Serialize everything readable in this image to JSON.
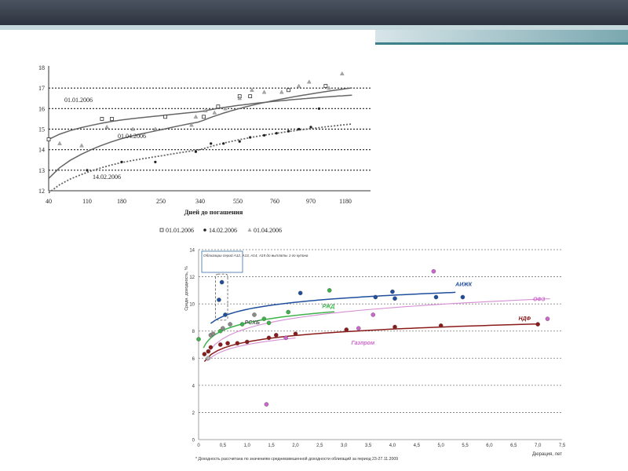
{
  "slide": {
    "colors": {
      "top_bar": "#3a414c",
      "stripe": "#c5d8dc",
      "accent": "#3e7f8c"
    }
  },
  "chart_data": [
    {
      "type": "scatter",
      "title": "",
      "xlabel": "Дней до погашения",
      "ylabel": "",
      "x_ticks": [
        "40",
        "110",
        "180",
        "250",
        "340",
        "550",
        "760",
        "970",
        "1180"
      ],
      "ylim": [
        12,
        18
      ],
      "y_ticks": [
        "12",
        "13",
        "14",
        "15",
        "16",
        "17",
        "18"
      ],
      "legend": [
        "01.01.2006",
        "14.02.2006",
        "01.04.2006"
      ],
      "legend_position": "bottom",
      "annotations": [
        "01.01.2006",
        "01.04.2006",
        "14.02.2006"
      ],
      "series": [
        {
          "name": "01.01.2006",
          "marker": "square",
          "points": [
            [
              40,
              14.5
            ],
            [
              140,
              15.5
            ],
            [
              160,
              15.5
            ],
            [
              260,
              15.6
            ],
            [
              360,
              15.6
            ],
            [
              440,
              16.1
            ],
            [
              560,
              16.6
            ],
            [
              620,
              16.6
            ],
            [
              840,
              16.9
            ],
            [
              1060,
              17.1
            ]
          ]
        },
        {
          "name": "14.02.2006",
          "marker": "dot",
          "points": [
            [
              110,
              13.0
            ],
            [
              180,
              13.4
            ],
            [
              240,
              13.4
            ],
            [
              330,
              13.9
            ],
            [
              400,
              14.3
            ],
            [
              470,
              14.3
            ],
            [
              560,
              14.4
            ],
            [
              620,
              14.6
            ],
            [
              700,
              14.7
            ],
            [
              770,
              14.8
            ],
            [
              840,
              14.9
            ],
            [
              900,
              15.0
            ],
            [
              970,
              15.1
            ],
            [
              1020,
              16.0
            ]
          ]
        },
        {
          "name": "01.04.2006",
          "marker": "triangle",
          "points": [
            [
              60,
              14.3
            ],
            [
              100,
              14.2
            ],
            [
              150,
              15.1
            ],
            [
              200,
              15.0
            ],
            [
              240,
              15.0
            ],
            [
              320,
              15.2
            ],
            [
              330,
              15.6
            ],
            [
              370,
              15.9
            ],
            [
              420,
              15.8
            ],
            [
              480,
              16.0
            ],
            [
              560,
              16.5
            ],
            [
              630,
              16.9
            ],
            [
              700,
              16.8
            ],
            [
              800,
              16.8
            ],
            [
              900,
              17.1
            ],
            [
              960,
              17.3
            ],
            [
              1080,
              17.0
            ],
            [
              1160,
              17.7
            ]
          ]
        }
      ]
    },
    {
      "type": "scatter",
      "title": "",
      "xlabel": "Дюрация, лет",
      "ylabel": "Средн. доходность, %",
      "xlim": [
        0,
        7.5
      ],
      "ylim": [
        0,
        14
      ],
      "x_ticks": [
        "0",
        "0,5",
        "1,0",
        "1,5",
        "2,0",
        "2,5",
        "3,0",
        "3,5",
        "4,0",
        "4,5",
        "5,0",
        "5,5",
        "6,0",
        "6,5",
        "7,0",
        "7,5"
      ],
      "y_ticks": [
        "0",
        "2",
        "4",
        "6",
        "8",
        "10",
        "12",
        "14"
      ],
      "annotation_box": "Облигации серий А12, А13, А14, А15 до выплаты 1-го купона",
      "footnote": "* Доходность рассчитана по значениям средневзвешенной доходности облигаций за период 23-27.11.2009",
      "series": [
        {
          "name": "АИЖК",
          "color": "#1f4e9c",
          "points": [
            [
              0.42,
              10.3
            ],
            [
              0.48,
              11.6
            ],
            [
              0.55,
              9.2
            ],
            [
              2.1,
              10.8
            ],
            [
              3.65,
              10.5
            ],
            [
              4.0,
              10.9
            ],
            [
              4.05,
              10.4
            ],
            [
              4.9,
              10.5
            ],
            [
              5.45,
              10.5
            ]
          ]
        },
        {
          "name": "РЖД",
          "color": "#3cb34a",
          "points": [
            [
              0.0,
              7.4
            ],
            [
              0.45,
              8.0
            ],
            [
              0.9,
              8.5
            ],
            [
              1.35,
              8.9
            ],
            [
              1.45,
              8.6
            ],
            [
              1.85,
              9.4
            ],
            [
              2.7,
              11.0
            ]
          ]
        },
        {
          "name": "РСХБ",
          "color": "#8a8a8a",
          "points": [
            [
              0.25,
              7.7
            ],
            [
              0.3,
              7.8
            ],
            [
              0.5,
              8.2
            ],
            [
              0.65,
              8.5
            ],
            [
              1.15,
              9.2
            ]
          ]
        },
        {
          "name": "ОФЗ",
          "color": "#cc66cc",
          "points": [
            [
              1.4,
              2.6
            ],
            [
              1.8,
              7.5
            ],
            [
              3.3,
              8.2
            ],
            [
              3.6,
              9.2
            ],
            [
              4.85,
              12.4
            ],
            [
              7.2,
              8.9
            ]
          ]
        },
        {
          "name": "НДФ",
          "color": "#8b1a1a",
          "points": [
            [
              0.12,
              6.3
            ],
            [
              0.2,
              6.5
            ],
            [
              0.25,
              6.8
            ],
            [
              0.45,
              7.0
            ],
            [
              0.6,
              7.1
            ],
            [
              0.8,
              7.1
            ],
            [
              1.0,
              7.2
            ],
            [
              1.45,
              7.5
            ],
            [
              1.6,
              7.7
            ],
            [
              2.0,
              7.8
            ],
            [
              3.05,
              8.1
            ],
            [
              4.05,
              8.3
            ],
            [
              5.0,
              8.4
            ],
            [
              7.0,
              8.5
            ]
          ]
        },
        {
          "name": "Газпром",
          "color": "#b0b0b0",
          "points": [
            [
              0.2,
              6.0
            ]
          ]
        }
      ]
    }
  ]
}
